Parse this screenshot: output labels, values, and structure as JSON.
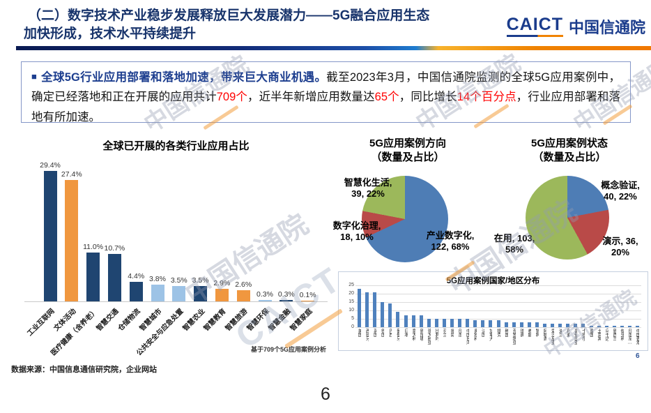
{
  "header": {
    "title_line1": "（二）数字技术产业稳步发展释放巨大发展潜力——5G融合应用生态",
    "title_line2": "加快形成，技术水平持续提升",
    "logo_caict": "CAICT",
    "logo_cn": "中国信通院"
  },
  "highlight_box": {
    "bullet": "■",
    "lead": "全球5G行业应用部署和落地加速，带来巨大商业机遇。",
    "seg1": "截至2023年3月，中国信通院监测的全球5G应用案例中，确定已经落地和正在开展的应用共计",
    "red1": "709个",
    "seg2": "，近半年新增应用数量达",
    "red2": "65个",
    "seg3": "，同比增长",
    "red3": "14个百分点",
    "seg4": "，行业应用部署和落地有所加速。"
  },
  "chart_data": [
    {
      "type": "bar",
      "title": "全球已开展的各类行业应用占比",
      "categories": [
        "工业互联网",
        "文体活动",
        "医疗健康（含养老）",
        "智慧交通",
        "仓储物流",
        "智慧城市",
        "公共安全与应急处置",
        "智慧农业",
        "智慧教育",
        "智慧旅游",
        "智慧环保",
        "智慧金融",
        "智慧家庭"
      ],
      "values": [
        29.4,
        27.4,
        11.0,
        10.7,
        4.4,
        3.8,
        3.5,
        3.5,
        2.9,
        2.6,
        0.3,
        0.3,
        0.1
      ],
      "value_labels": [
        "29.4%",
        "27.4%",
        "11.0%",
        "10.7%",
        "4.4%",
        "3.8%",
        "3.5%",
        "3.5%",
        "2.9%",
        "2.6%",
        "0.3%",
        "0.3%",
        "0.1%"
      ],
      "bar_colors": [
        "#1f4571",
        "#f0973f",
        "#1f4571",
        "#1f4571",
        "#1f4571",
        "#9dc3e6",
        "#9dc3e6",
        "#1f4571",
        "#f0973f",
        "#f0973f",
        "#9dc3e6",
        "#1f4571",
        "#f0973f"
      ],
      "ylim": [
        0,
        30
      ],
      "grid": false,
      "note": "基于709个5G应用案例分析"
    },
    {
      "type": "pie",
      "title": "5G应用案例方向\n（数量及占比）",
      "slices": [
        {
          "name": "产业数字化",
          "count": 122,
          "pct": 68,
          "color": "#4e7db5",
          "label": "产业数字化,\n122, 68%"
        },
        {
          "name": "数字化治理",
          "count": 18,
          "pct": 10,
          "color": "#b94a48",
          "label": "数字化治理,\n18, 10%"
        },
        {
          "name": "智慧化生活",
          "count": 39,
          "pct": 22,
          "color": "#9cb85b",
          "label": "智慧化生活,\n39, 22%"
        }
      ]
    },
    {
      "type": "pie",
      "title": "5G应用案例状态\n（数量及占比）",
      "slices": [
        {
          "name": "概念验证",
          "count": 40,
          "pct": 22,
          "color": "#4e7db5",
          "label": "概念验证,\n40, 22%"
        },
        {
          "name": "演示",
          "count": 36,
          "pct": 20,
          "color": "#b94a48",
          "label": "演示, 36,\n20%"
        },
        {
          "name": "在用",
          "count": 103,
          "pct": 58,
          "color": "#9cb85b",
          "label": "在用, 103,\n58%"
        }
      ]
    },
    {
      "type": "bar",
      "title": "5G应用案例国家/地区分布",
      "categories": [
        "美国",
        "西班牙",
        "英国",
        "德国",
        "巴西",
        "葡萄牙",
        "日本",
        "意大利",
        "新加坡",
        "澳大利亚",
        "比利时",
        "芬兰",
        "挪威",
        "印度",
        "中国台湾",
        "奥地利",
        "法国",
        "加拿大",
        "捷克",
        "韩国",
        "克罗地亚",
        "瑞典",
        "希腊",
        "智利",
        "阿联酋",
        "爱沙尼亚",
        "波兰",
        "丹麦",
        "哥伦比亚",
        "卡塔尔",
        "泰国",
        "土耳其",
        "乌干达",
        "新西兰",
        "匈牙利",
        "印度尼…",
        "中国香港"
      ],
      "values": [
        23,
        21,
        21,
        15,
        14,
        9,
        7,
        7,
        7,
        5,
        5,
        5,
        5,
        5,
        5,
        4,
        4,
        4,
        4,
        3,
        3,
        3,
        3,
        3,
        2,
        2,
        2,
        2,
        2,
        2,
        1,
        1,
        1,
        1,
        1,
        1,
        1
      ],
      "ylim": [
        0,
        25
      ],
      "yticks": [
        0,
        5,
        10,
        15,
        20,
        25
      ],
      "grid": true,
      "bar_color": "#4f81bd"
    }
  ],
  "footer": {
    "source": "数据来源：中国信息通信研究院，企业网站",
    "page_number": "6",
    "corner_number": "6"
  },
  "watermark": {
    "text": "中国信通院",
    "caict": "CAICT"
  }
}
